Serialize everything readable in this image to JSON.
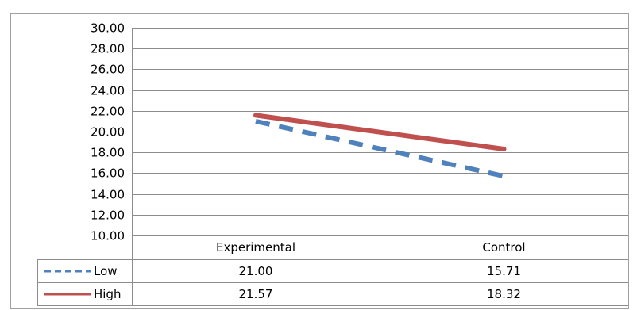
{
  "chart_data": {
    "type": "line",
    "title": "",
    "xlabel": "",
    "ylabel": "",
    "ylim": [
      10,
      30
    ],
    "ytick_step": 2,
    "ytick_labels": [
      "10.00",
      "12.00",
      "14.00",
      "16.00",
      "18.00",
      "20.00",
      "22.00",
      "24.00",
      "26.00",
      "28.00",
      "30.00"
    ],
    "grid": true,
    "legend_placement": "data-table",
    "categories": [
      "Experimental",
      "Control"
    ],
    "series": [
      {
        "name": "Low",
        "values": [
          21.0,
          15.71
        ],
        "value_labels": [
          "21.00",
          "15.71"
        ],
        "color": "#4f81bd",
        "dash": "dashed"
      },
      {
        "name": "High",
        "values": [
          21.57,
          18.32
        ],
        "value_labels": [
          "21.57",
          "18.32"
        ],
        "color": "#c0504d",
        "dash": "solid"
      }
    ]
  }
}
